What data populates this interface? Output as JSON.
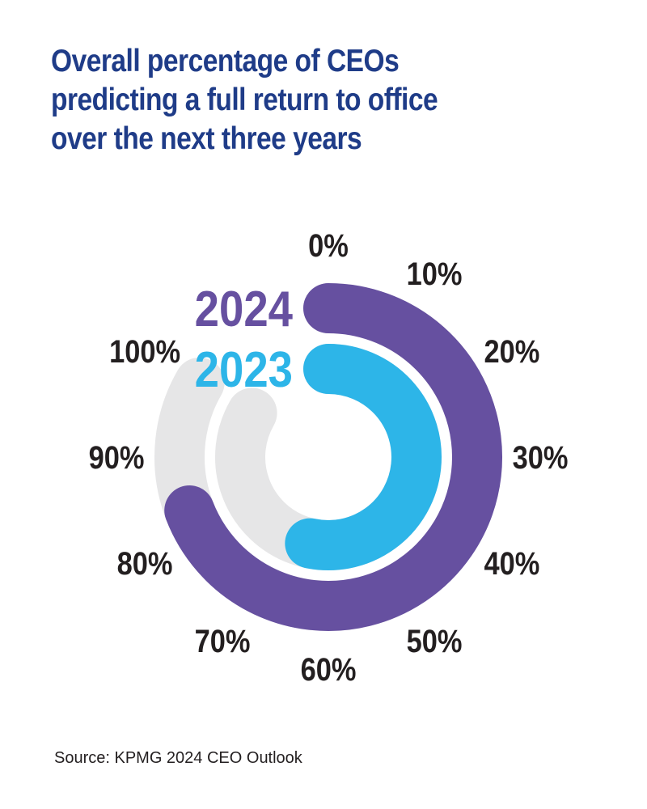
{
  "title_lines": [
    "Overall percentage of CEOs",
    "predicting a full return to office",
    "over the next three years"
  ],
  "source": "Source: KPMG 2024 CEO Outlook",
  "colors": {
    "title": "#1f3c88",
    "track": "#e6e6e7",
    "tick_text": "#231f20"
  },
  "chart_data": {
    "type": "radial-bar",
    "ticks": [
      "0%",
      "10%",
      "20%",
      "30%",
      "40%",
      "50%",
      "60%",
      "70%",
      "80%",
      "90%",
      "100%"
    ],
    "range": [
      0,
      100
    ],
    "series": [
      {
        "name": "2024",
        "value": 83,
        "color": "#6650a0"
      },
      {
        "name": "2023",
        "value": 64,
        "color": "#2db5e8"
      }
    ]
  }
}
